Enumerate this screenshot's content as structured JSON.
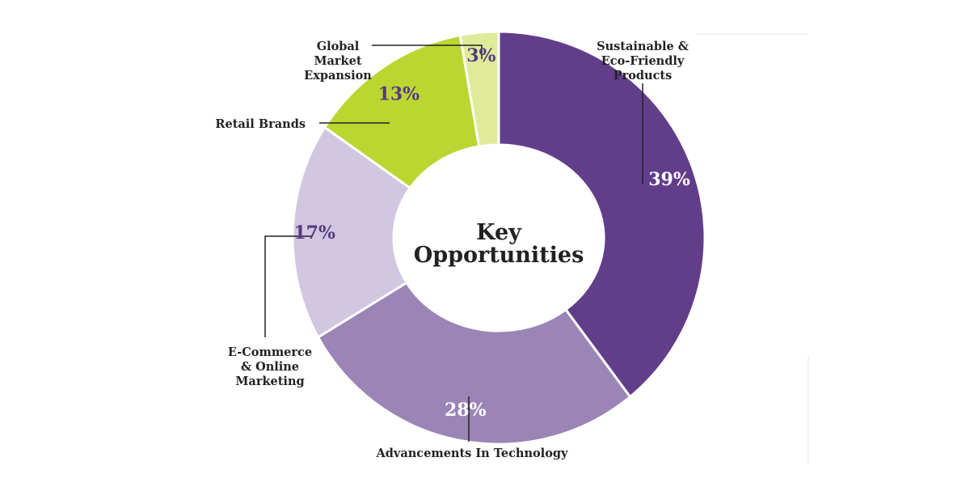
{
  "chart_data": {
    "type": "pie",
    "donut": true,
    "title": "Key Opportunities",
    "title_lines": [
      "Key",
      "Opportunities"
    ],
    "unit": "%",
    "slices": [
      {
        "label": "Sustainable & Eco-Friendly Products",
        "label_lines": [
          "Sustainable &",
          "Eco-Friendly",
          "Products"
        ],
        "value": 39,
        "display": "39%",
        "color": "#623e8a",
        "value_color": "#ffffff"
      },
      {
        "label": "Advancements In Technology",
        "label_lines": [
          "Advancements In Technology"
        ],
        "value": 28,
        "display": "28%",
        "color": "#9a85b6",
        "value_color": "#ffffff"
      },
      {
        "label": "E-Commerce & Online Marketing",
        "label_lines": [
          "E-Commerce",
          "& Online",
          "Marketing"
        ],
        "value": 17,
        "display": "17%",
        "color": "#d1c7e0",
        "value_color": "#553a80"
      },
      {
        "label": "Retail Brands",
        "label_lines": [
          "Retail Brands"
        ],
        "value": 13,
        "display": "13%",
        "color": "#bcd631",
        "value_color": "#553a80"
      },
      {
        "label": "Global Market Expansion",
        "label_lines": [
          "Global",
          "Market",
          "Expansion"
        ],
        "value": 3,
        "display": "3%",
        "color": "#dfeb99",
        "value_color": "#553a80"
      }
    ],
    "legend": "none"
  }
}
